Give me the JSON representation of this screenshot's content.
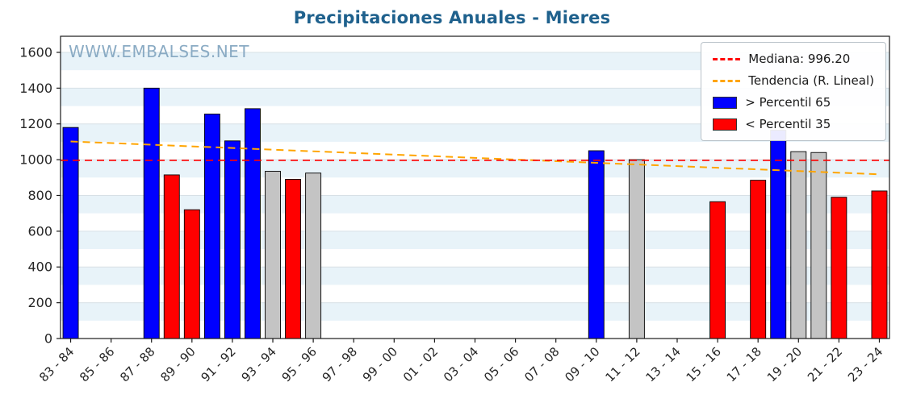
{
  "title": "Precipitaciones Anuales - Mieres",
  "watermark": "WWW.EMBALSES.NET",
  "colors": {
    "title": "#1f618d",
    "watermark": "#8aabc4",
    "bar_blue": "#0000ff",
    "bar_red": "#ff0000",
    "bar_gray": "#c4c4c4",
    "bar_edge": "#000000",
    "median_line": "#ff0000",
    "trend_line": "#ffa500",
    "band": "#e8f3f9",
    "grid_line": "#d7e0e6",
    "plot_border": "#1a1a1a",
    "tick_text": "#262626"
  },
  "chart_data": {
    "type": "bar",
    "title": "Precipitaciones Anuales - Mieres",
    "xlabel": "",
    "ylabel": "",
    "ylim": [
      0,
      1690
    ],
    "yticks": [
      0,
      200,
      400,
      600,
      800,
      1000,
      1200,
      1400,
      1600
    ],
    "grid": true,
    "background_bands": true,
    "legend_position": "upper right",
    "n_slots": 41,
    "x_tick_labels": [
      "83 - 84",
      "85 - 86",
      "87 - 88",
      "89 - 90",
      "91 - 92",
      "93 - 94",
      "95 - 96",
      "97 - 98",
      "99 - 00",
      "01 - 02",
      "03 - 04",
      "05 - 06",
      "07 - 08",
      "09 - 10",
      "11 - 12",
      "13 - 14",
      "15 - 16",
      "17 - 18",
      "19 - 20",
      "21 - 22",
      "23 - 24"
    ],
    "bars": [
      {
        "slot": 0,
        "season": "83 - 84",
        "value": 1180,
        "category": "p65"
      },
      {
        "slot": 4,
        "season": "87 - 88",
        "value": 1400,
        "category": "p65"
      },
      {
        "slot": 5,
        "season": "88 - 89",
        "value": 915,
        "category": "p35"
      },
      {
        "slot": 6,
        "season": "89 - 90",
        "value": 720,
        "category": "p35"
      },
      {
        "slot": 7,
        "season": "90 - 91",
        "value": 1255,
        "category": "p65"
      },
      {
        "slot": 8,
        "season": "91 - 92",
        "value": 1105,
        "category": "p65"
      },
      {
        "slot": 9,
        "season": "92 - 93",
        "value": 1285,
        "category": "p65"
      },
      {
        "slot": 10,
        "season": "93 - 94",
        "value": 935,
        "category": "mid"
      },
      {
        "slot": 11,
        "season": "94 - 95",
        "value": 890,
        "category": "p35"
      },
      {
        "slot": 12,
        "season": "95 - 96",
        "value": 925,
        "category": "mid"
      },
      {
        "slot": 26,
        "season": "09 - 10",
        "value": 1050,
        "category": "p65"
      },
      {
        "slot": 28,
        "season": "11 - 12",
        "value": 1000,
        "category": "mid"
      },
      {
        "slot": 32,
        "season": "15 - 16",
        "value": 765,
        "category": "p35"
      },
      {
        "slot": 34,
        "season": "17 - 18",
        "value": 885,
        "category": "p35"
      },
      {
        "slot": 35,
        "season": "18 - 19",
        "value": 1165,
        "category": "p65"
      },
      {
        "slot": 36,
        "season": "19 - 20",
        "value": 1045,
        "category": "mid"
      },
      {
        "slot": 37,
        "season": "20 - 21",
        "value": 1040,
        "category": "mid"
      },
      {
        "slot": 38,
        "season": "21 - 22",
        "value": 790,
        "category": "p35"
      },
      {
        "slot": 40,
        "season": "23 - 24",
        "value": 825,
        "category": "p35"
      }
    ],
    "median": {
      "value": 996.2,
      "label": "Mediana: 996.20",
      "style": "dashed"
    },
    "trend": {
      "label": "Tendencia (R. Lineal)",
      "start_value": 1102,
      "end_value": 918,
      "style": "dashed"
    },
    "legend": [
      {
        "type": "line",
        "color": "#ff0000",
        "label": "Mediana: 996.20"
      },
      {
        "type": "line",
        "color": "#ffa500",
        "label": "Tendencia (R. Lineal)"
      },
      {
        "type": "patch",
        "color": "#0000ff",
        "label": "> Percentil 65"
      },
      {
        "type": "patch",
        "color": "#ff0000",
        "label": "< Percentil 35"
      }
    ]
  }
}
